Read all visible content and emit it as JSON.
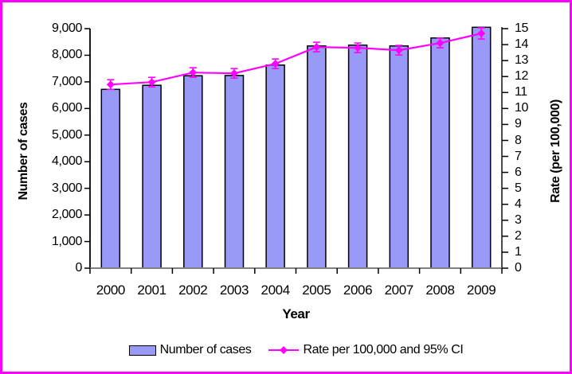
{
  "chart_data": {
    "type": "bar",
    "combo": "bar+line",
    "title": "",
    "xlabel": "Year",
    "ylabel_left": "Number of cases",
    "ylabel_right": "Rate (per 100,000)",
    "categories": [
      "2000",
      "2001",
      "2002",
      "2003",
      "2004",
      "2005",
      "2006",
      "2007",
      "2008",
      "2009"
    ],
    "series": [
      {
        "name": "Number of cases",
        "type": "bar",
        "axis": "left",
        "values": [
          6720,
          6870,
          7230,
          7240,
          7630,
          8350,
          8380,
          8350,
          8650,
          9050
        ]
      },
      {
        "name": "Rate per 100,000 and 95% CI",
        "type": "line",
        "axis": "right",
        "values": [
          11.5,
          11.65,
          12.25,
          12.2,
          12.8,
          13.85,
          13.8,
          13.65,
          14.1,
          14.7
        ],
        "ci": [
          0.3,
          0.3,
          0.3,
          0.3,
          0.3,
          0.3,
          0.3,
          0.3,
          0.3,
          0.35
        ]
      }
    ],
    "ylim_left": [
      0,
      9000
    ],
    "ytick_step_left": 1000,
    "ylim_right": [
      0,
      15
    ],
    "ytick_step_right": 1,
    "grid": "off",
    "legend_position": "bottom"
  },
  "legend": {
    "bar_label": "Number of cases",
    "line_label": "Rate per 100,000 and 95% CI"
  },
  "colors": {
    "frame_border": "#ff00ff",
    "bar_fill": "#9999f7",
    "bar_stroke": "#000000",
    "line": "#ff00ff",
    "axis_left": "#1a1a1a",
    "axis_right": "#4d4d4d",
    "axis_bottom": "#808080",
    "tick": "#000000",
    "text": "#000000"
  }
}
